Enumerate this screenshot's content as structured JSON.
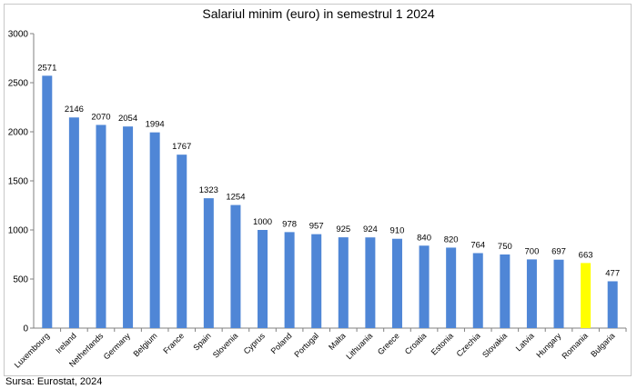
{
  "chart_data": {
    "type": "bar",
    "title": "Salariul minim (euro) in semestrul 1 2024",
    "xlabel": "",
    "ylabel": "",
    "ylim": [
      0,
      3000
    ],
    "yticks": [
      0,
      500,
      1000,
      1500,
      2000,
      2500,
      3000
    ],
    "grid": false,
    "legend": "none",
    "categories": [
      "Luxembourg",
      "Ireland",
      "Netherlands",
      "Germany",
      "Belgium",
      "France",
      "Spain",
      "Slovenia",
      "Cyprus",
      "Poland",
      "Portugal",
      "Malta",
      "Lithuania",
      "Greece",
      "Croatia",
      "Estonia",
      "Czechia",
      "Slovakia",
      "Latvia",
      "Hungary",
      "Romania",
      "Bulgaria"
    ],
    "values": [
      2571,
      2146,
      2070,
      2054,
      1994,
      1767,
      1323,
      1254,
      1000,
      978,
      957,
      925,
      924,
      910,
      840,
      820,
      764,
      750,
      700,
      697,
      663,
      477
    ],
    "bar_color": "#4f86d6",
    "highlight": {
      "category": "Romania",
      "color": "#ffff00"
    }
  },
  "source": "Sursa: Eurostat, 2024"
}
